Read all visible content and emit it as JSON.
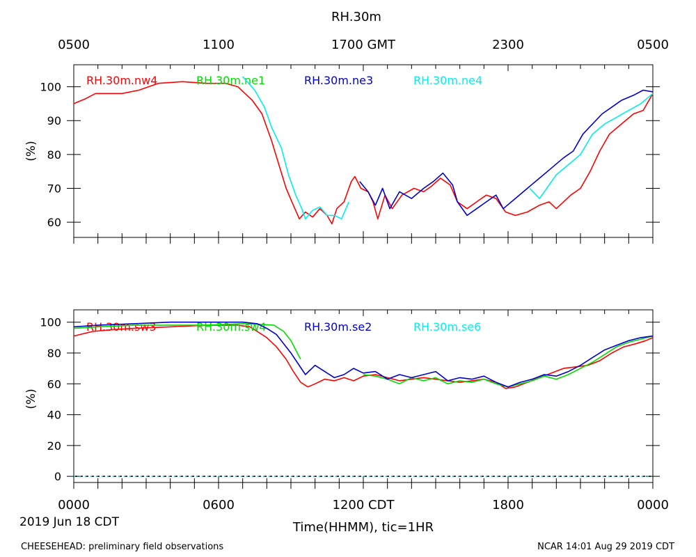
{
  "figure": {
    "title": "RH.30m",
    "top_axis_ticks": [
      "0500",
      "1100",
      "1700 GMT",
      "2300",
      "0500"
    ],
    "bottom_axis_ticks": [
      "0000",
      "0600",
      "1200 CDT",
      "1800",
      "0000"
    ],
    "date_label": "2019 Jun 18 CDT",
    "xlabel": "Time(HHMM), tic=1HR",
    "footer_left": "CHEESEHEAD: preliminary field observations",
    "footer_right": "NCAR 14:01 Aug 29 2019 CDT"
  },
  "chart_data": [
    {
      "type": "line",
      "title": "RH.30m",
      "ylabel": "(%)",
      "xlim": [
        0,
        24
      ],
      "ylim": [
        55.5,
        106.5
      ],
      "yticks": [
        60,
        70,
        80,
        90,
        100
      ],
      "legend_position": "top",
      "series": [
        {
          "name": "RH.30m.nw4",
          "color": "#ff0000",
          "points": [
            [
              0,
              95
            ],
            [
              0.5,
              96.5
            ],
            [
              0.9,
              98
            ],
            [
              2,
              98
            ],
            [
              2.7,
              99
            ],
            [
              3.5,
              101
            ],
            [
              4.5,
              101.5
            ],
            [
              5.5,
              101
            ],
            [
              6.3,
              101
            ],
            [
              6.8,
              100
            ],
            [
              7.4,
              96
            ],
            [
              7.8,
              92
            ],
            [
              8.2,
              84
            ],
            [
              8.5,
              77
            ],
            [
              8.8,
              70
            ],
            [
              9.1,
              65
            ],
            [
              9.35,
              61
            ],
            [
              9.6,
              63
            ],
            [
              9.9,
              61.5
            ],
            [
              10.2,
              64
            ],
            [
              10.5,
              62
            ],
            [
              10.7,
              59.5
            ],
            [
              10.9,
              64
            ],
            [
              11.2,
              66
            ],
            [
              11.5,
              72
            ],
            [
              11.65,
              73.5
            ],
            [
              11.9,
              70
            ],
            [
              12.2,
              69
            ],
            [
              12.4,
              66
            ],
            [
              12.6,
              61
            ],
            [
              12.9,
              68
            ],
            [
              13.2,
              64
            ],
            [
              13.6,
              68
            ],
            [
              14.1,
              70
            ],
            [
              14.5,
              69
            ],
            [
              14.8,
              70.5
            ],
            [
              15.2,
              73
            ],
            [
              15.6,
              71
            ],
            [
              15.9,
              66
            ],
            [
              16.3,
              64
            ],
            [
              16.7,
              66
            ],
            [
              17.1,
              68
            ],
            [
              17.5,
              67
            ],
            [
              17.9,
              63
            ],
            [
              18.3,
              62
            ],
            [
              18.8,
              63
            ],
            [
              19.3,
              65
            ],
            [
              19.7,
              66
            ],
            [
              20.0,
              64
            ],
            [
              20.3,
              66
            ],
            [
              20.6,
              68
            ],
            [
              21.0,
              70
            ],
            [
              21.4,
              75
            ],
            [
              21.8,
              81
            ],
            [
              22.2,
              86
            ],
            [
              22.7,
              89
            ],
            [
              23.2,
              92
            ],
            [
              23.6,
              93
            ],
            [
              24,
              98
            ]
          ]
        },
        {
          "name": "RH.30m.ne1",
          "color": "#00dd00",
          "points": []
        },
        {
          "name": "RH.30m.ne3",
          "color": "#0000cc",
          "points": [
            [
              11.85,
              72
            ],
            [
              12.2,
              69
            ],
            [
              12.5,
              65
            ],
            [
              12.8,
              70
            ],
            [
              13.1,
              64
            ],
            [
              13.5,
              69
            ],
            [
              14.0,
              67
            ],
            [
              14.5,
              70
            ],
            [
              14.9,
              72
            ],
            [
              15.3,
              74.5
            ],
            [
              15.7,
              71
            ],
            [
              15.9,
              66
            ],
            [
              16.3,
              62
            ],
            [
              16.7,
              64
            ],
            [
              17.1,
              66
            ],
            [
              17.5,
              68
            ],
            [
              17.8,
              64
            ],
            [
              18.3,
              67
            ],
            [
              18.8,
              70
            ],
            [
              19.3,
              73
            ],
            [
              19.8,
              76
            ],
            [
              20.3,
              79
            ],
            [
              20.7,
              81
            ],
            [
              21.1,
              86
            ],
            [
              21.5,
              89
            ],
            [
              21.9,
              92
            ],
            [
              22.3,
              94
            ],
            [
              22.7,
              96
            ],
            [
              23.2,
              97.5
            ],
            [
              23.6,
              99
            ],
            [
              24,
              98.5
            ]
          ]
        },
        {
          "name": "RH.30m.ne4",
          "color": "#00eeee",
          "points": [
            [
              7.0,
              103
            ],
            [
              7.5,
              99
            ],
            [
              7.9,
              94
            ],
            [
              8.2,
              88
            ],
            [
              8.6,
              82
            ],
            [
              8.9,
              74
            ],
            [
              9.2,
              68
            ],
            [
              9.45,
              64
            ],
            [
              9.6,
              61
            ],
            [
              9.9,
              63.5
            ],
            [
              10.2,
              64.5
            ],
            [
              10.5,
              62
            ],
            [
              10.8,
              62
            ],
            [
              11.1,
              61
            ],
            [
              11.4,
              66
            ],
            [
              18.9,
              70
            ],
            [
              19.3,
              67
            ],
            [
              19.6,
              70
            ],
            [
              20.0,
              74
            ],
            [
              20.5,
              77
            ],
            [
              21.0,
              80
            ],
            [
              21.5,
              86
            ],
            [
              22.0,
              89
            ],
            [
              22.5,
              91
            ],
            [
              23.0,
              93
            ],
            [
              23.5,
              95
            ],
            [
              24,
              98
            ]
          ]
        }
      ]
    },
    {
      "type": "line",
      "ylabel": "(%)",
      "xlim": [
        0,
        24
      ],
      "ylim": [
        -4,
        108
      ],
      "yticks": [
        0,
        20,
        40,
        60,
        80,
        100
      ],
      "legend_position": "top",
      "reference_lines": [
        {
          "y": 0,
          "style": "dashed"
        }
      ],
      "series": [
        {
          "name": "RH.30m.sw3",
          "color": "#ff0000",
          "points": [
            [
              0,
              91
            ],
            [
              0.8,
              94
            ],
            [
              1.5,
              95
            ],
            [
              2.5,
              96
            ],
            [
              4.0,
              97
            ],
            [
              5.5,
              98
            ],
            [
              6.8,
              98
            ],
            [
              7.3,
              97
            ],
            [
              7.6,
              94
            ],
            [
              8.0,
              90
            ],
            [
              8.4,
              84
            ],
            [
              8.8,
              76
            ],
            [
              9.1,
              68
            ],
            [
              9.4,
              61
            ],
            [
              9.7,
              58
            ],
            [
              10.0,
              60
            ],
            [
              10.4,
              63
            ],
            [
              10.8,
              62
            ],
            [
              11.2,
              64
            ],
            [
              11.6,
              62
            ],
            [
              12.0,
              65
            ],
            [
              12.5,
              66
            ],
            [
              13.0,
              64
            ],
            [
              13.5,
              62
            ],
            [
              14.0,
              63
            ],
            [
              14.5,
              64
            ],
            [
              15.0,
              63
            ],
            [
              15.5,
              62
            ],
            [
              16.0,
              61
            ],
            [
              16.5,
              62
            ],
            [
              17.0,
              63
            ],
            [
              17.5,
              61
            ],
            [
              17.9,
              57
            ],
            [
              18.3,
              58
            ],
            [
              18.8,
              61
            ],
            [
              19.3,
              64
            ],
            [
              19.8,
              67
            ],
            [
              20.3,
              70
            ],
            [
              20.8,
              71
            ],
            [
              21.3,
              72
            ],
            [
              21.8,
              75
            ],
            [
              22.3,
              80
            ],
            [
              22.8,
              84
            ],
            [
              23.3,
              86
            ],
            [
              23.7,
              88
            ],
            [
              24,
              90
            ]
          ]
        },
        {
          "name": "RH.30m.sw4",
          "color": "#00dd00",
          "points": [
            [
              0,
              96
            ],
            [
              1,
              97
            ],
            [
              2.5,
              98
            ],
            [
              4,
              98
            ],
            [
              5.5,
              98
            ],
            [
              7,
              99
            ],
            [
              7.8,
              98.5
            ],
            [
              8.3,
              98
            ],
            [
              8.7,
              94
            ],
            [
              9.0,
              88
            ],
            [
              9.2,
              82
            ],
            [
              9.4,
              76
            ],
            [
              12.0,
              66
            ],
            [
              12.5,
              65
            ],
            [
              13.0,
              63
            ],
            [
              13.5,
              60
            ],
            [
              14.0,
              64
            ],
            [
              14.5,
              62
            ],
            [
              15.0,
              64
            ],
            [
              15.5,
              60
            ],
            [
              16.0,
              62
            ],
            [
              16.5,
              61
            ],
            [
              17.0,
              63
            ],
            [
              17.5,
              60
            ],
            [
              18.0,
              58
            ],
            [
              18.5,
              60
            ],
            [
              19.0,
              62
            ],
            [
              19.5,
              65
            ],
            [
              20.0,
              63
            ],
            [
              20.5,
              66
            ],
            [
              21.0,
              70
            ],
            [
              21.5,
              74
            ],
            [
              22.0,
              79
            ],
            [
              22.5,
              84
            ],
            [
              23.0,
              87
            ],
            [
              23.5,
              89
            ],
            [
              24,
              91
            ]
          ]
        },
        {
          "name": "RH.30m.se2",
          "color": "#0000cc",
          "points": [
            [
              0,
              97
            ],
            [
              1,
              98
            ],
            [
              2.5,
              99
            ],
            [
              4,
              100
            ],
            [
              5.5,
              100
            ],
            [
              7,
              100
            ],
            [
              7.6,
              99
            ],
            [
              8.0,
              96
            ],
            [
              8.4,
              92
            ],
            [
              8.7,
              86
            ],
            [
              9.0,
              80
            ],
            [
              9.3,
              73
            ],
            [
              9.6,
              66
            ],
            [
              10.0,
              72
            ],
            [
              10.4,
              68
            ],
            [
              10.8,
              64
            ],
            [
              11.2,
              66
            ],
            [
              11.6,
              70
            ],
            [
              12.0,
              67
            ],
            [
              12.5,
              68
            ],
            [
              13.0,
              63
            ],
            [
              13.5,
              66
            ],
            [
              14.0,
              64
            ],
            [
              14.5,
              66
            ],
            [
              15.0,
              68
            ],
            [
              15.5,
              62
            ],
            [
              16.0,
              64
            ],
            [
              16.5,
              63
            ],
            [
              17.0,
              65
            ],
            [
              17.5,
              61
            ],
            [
              18.0,
              58
            ],
            [
              18.5,
              61
            ],
            [
              19.0,
              63
            ],
            [
              19.5,
              66
            ],
            [
              20.0,
              65
            ],
            [
              20.5,
              68
            ],
            [
              21.0,
              72
            ],
            [
              21.5,
              77
            ],
            [
              22.0,
              82
            ],
            [
              22.5,
              85
            ],
            [
              23.0,
              88
            ],
            [
              23.5,
              90
            ],
            [
              24,
              91
            ]
          ]
        },
        {
          "name": "RH.30m.se6",
          "color": "#00eeee",
          "points": []
        }
      ]
    }
  ]
}
